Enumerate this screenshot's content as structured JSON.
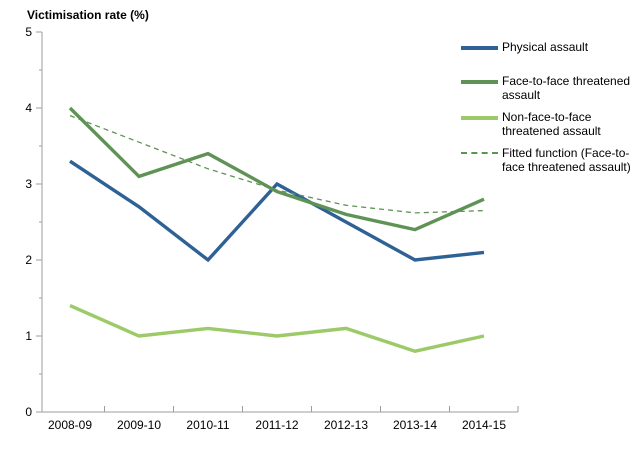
{
  "title": "Victimisation rate (%)",
  "colors": {
    "physical_assault": "#2e6195",
    "face_to_face": "#5e9355",
    "non_face_to_face": "#9cca68",
    "fitted": "#5e9355",
    "axis": "#9d9d9d",
    "text": "#000000",
    "background": "#ffffff"
  },
  "chart_data": {
    "type": "line",
    "title": "Victimisation rate (%)",
    "xlabel": "",
    "ylabel": "Victimisation rate (%)",
    "ylim": [
      0,
      5
    ],
    "yticks": [
      0,
      1,
      2,
      3,
      4,
      5
    ],
    "minor_ytick_step": 0.5,
    "grid": false,
    "legend_position": "right",
    "categories": [
      "2008-09",
      "2009-10",
      "2010-11",
      "2011-12",
      "2012-13",
      "2013-14",
      "2014-15"
    ],
    "series": [
      {
        "name": "Physical assault",
        "legend_lines": [
          "Physical assault"
        ],
        "style": "solid",
        "color": "#2e6195",
        "values": [
          3.3,
          2.7,
          2.0,
          3.0,
          2.5,
          2.0,
          2.1
        ]
      },
      {
        "name": "Face-to-face threatened assault",
        "legend_lines": [
          "Face-to-face threatened",
          "assault"
        ],
        "style": "solid",
        "color": "#5e9355",
        "values": [
          4.0,
          3.1,
          3.4,
          2.9,
          2.6,
          2.4,
          2.8
        ]
      },
      {
        "name": "Non-face-to-face threatened assault",
        "legend_lines": [
          "Non-face-to-face",
          "threatened assault"
        ],
        "style": "solid",
        "color": "#9cca68",
        "values": [
          1.4,
          1.0,
          1.1,
          1.0,
          1.1,
          0.8,
          1.0
        ]
      },
      {
        "name": "Fitted function (Face-to-face threatened assault)",
        "legend_lines": [
          "Fitted function (Face-to-",
          "face threatened assault)"
        ],
        "style": "dashed",
        "color": "#5e9355",
        "values": [
          3.9,
          3.55,
          3.2,
          2.92,
          2.72,
          2.62,
          2.65
        ]
      }
    ]
  }
}
